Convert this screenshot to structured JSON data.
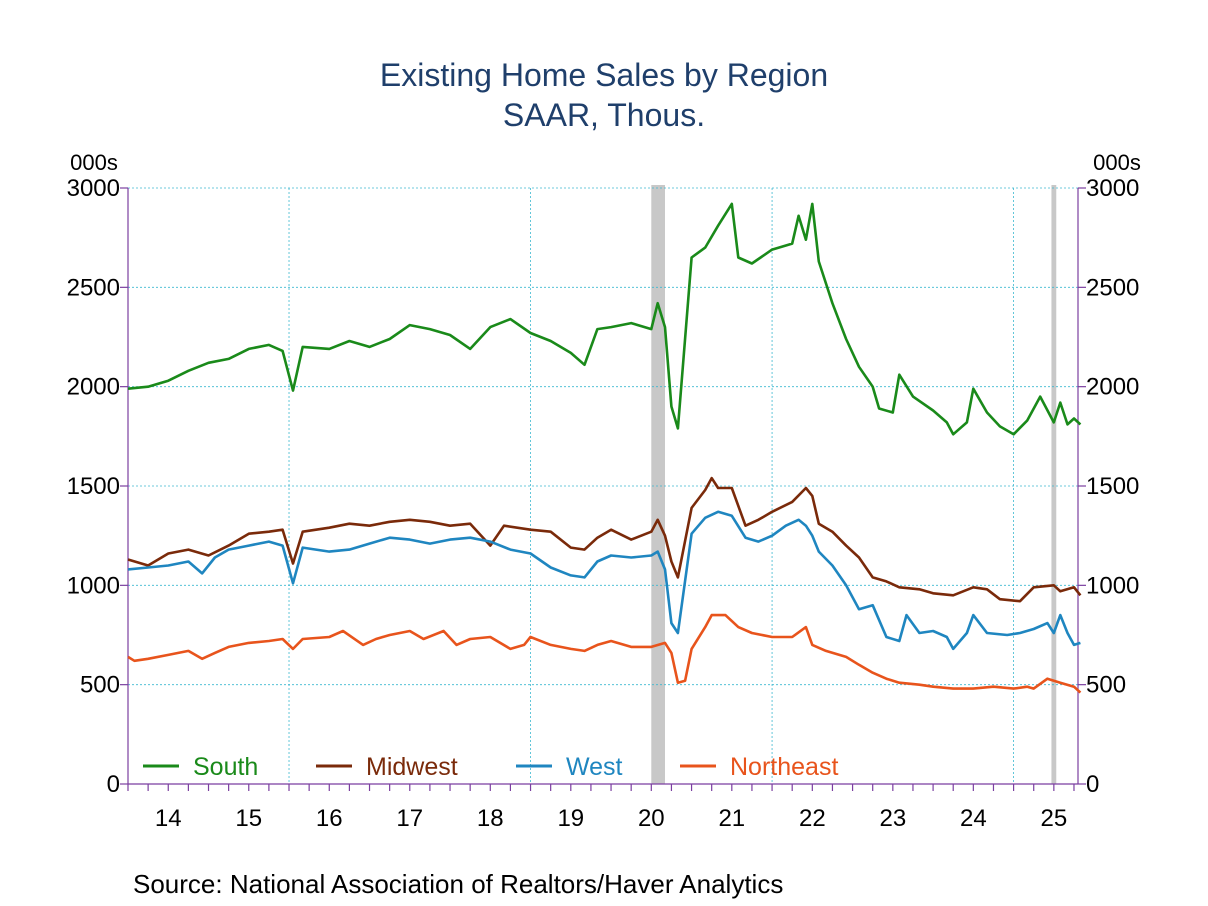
{
  "chart_data": {
    "type": "line",
    "title": "Existing Home Sales by Region",
    "subtitle": "SAAR, Thous.",
    "ylabel_left": "000s",
    "ylabel_right": "000s",
    "ylim": [
      0,
      3000
    ],
    "yticks": [
      "0",
      "500",
      "1000",
      "1500",
      "2000",
      "2500",
      "3000"
    ],
    "xlim": [
      2013.5,
      2025.3
    ],
    "xticks": [
      "14",
      "15",
      "16",
      "17",
      "18",
      "19",
      "20",
      "21",
      "22",
      "23",
      "24",
      "25"
    ],
    "grid": true,
    "legend_position": "bottom",
    "recession_shading": [
      [
        2020.0,
        2020.17
      ],
      [
        2024.97,
        2025.03
      ]
    ],
    "source": "Source:  National Association of Realtors/Haver Analytics",
    "series": [
      {
        "name": "South",
        "color": "#1a8a1a",
        "points": [
          [
            2013.5,
            1990
          ],
          [
            2013.75,
            2000
          ],
          [
            2014.0,
            2030
          ],
          [
            2014.25,
            2080
          ],
          [
            2014.5,
            2120
          ],
          [
            2014.75,
            2140
          ],
          [
            2015.0,
            2190
          ],
          [
            2015.25,
            2210
          ],
          [
            2015.42,
            2180
          ],
          [
            2015.55,
            1980
          ],
          [
            2015.67,
            2200
          ],
          [
            2016.0,
            2190
          ],
          [
            2016.25,
            2230
          ],
          [
            2016.5,
            2200
          ],
          [
            2016.75,
            2240
          ],
          [
            2017.0,
            2310
          ],
          [
            2017.25,
            2290
          ],
          [
            2017.5,
            2260
          ],
          [
            2017.75,
            2190
          ],
          [
            2018.0,
            2300
          ],
          [
            2018.25,
            2340
          ],
          [
            2018.5,
            2270
          ],
          [
            2018.75,
            2230
          ],
          [
            2019.0,
            2170
          ],
          [
            2019.17,
            2110
          ],
          [
            2019.33,
            2290
          ],
          [
            2019.5,
            2300
          ],
          [
            2019.75,
            2320
          ],
          [
            2020.0,
            2290
          ],
          [
            2020.08,
            2420
          ],
          [
            2020.17,
            2300
          ],
          [
            2020.25,
            1900
          ],
          [
            2020.33,
            1790
          ],
          [
            2020.5,
            2650
          ],
          [
            2020.67,
            2700
          ],
          [
            2020.83,
            2810
          ],
          [
            2021.0,
            2920
          ],
          [
            2021.08,
            2650
          ],
          [
            2021.25,
            2620
          ],
          [
            2021.5,
            2690
          ],
          [
            2021.75,
            2720
          ],
          [
            2021.83,
            2860
          ],
          [
            2021.92,
            2740
          ],
          [
            2022.0,
            2920
          ],
          [
            2022.08,
            2630
          ],
          [
            2022.25,
            2420
          ],
          [
            2022.42,
            2240
          ],
          [
            2022.58,
            2100
          ],
          [
            2022.75,
            2000
          ],
          [
            2022.83,
            1890
          ],
          [
            2023.0,
            1870
          ],
          [
            2023.08,
            2060
          ],
          [
            2023.25,
            1950
          ],
          [
            2023.5,
            1880
          ],
          [
            2023.67,
            1820
          ],
          [
            2023.75,
            1760
          ],
          [
            2023.92,
            1820
          ],
          [
            2024.0,
            1990
          ],
          [
            2024.17,
            1870
          ],
          [
            2024.33,
            1800
          ],
          [
            2024.5,
            1760
          ],
          [
            2024.67,
            1830
          ],
          [
            2024.83,
            1950
          ],
          [
            2025.0,
            1820
          ],
          [
            2025.08,
            1920
          ],
          [
            2025.17,
            1810
          ],
          [
            2025.25,
            1840
          ],
          [
            2025.33,
            1810
          ]
        ]
      },
      {
        "name": "Midwest",
        "color": "#7a2a0a",
        "points": [
          [
            2013.5,
            1130
          ],
          [
            2013.75,
            1100
          ],
          [
            2014.0,
            1160
          ],
          [
            2014.25,
            1180
          ],
          [
            2014.5,
            1150
          ],
          [
            2014.75,
            1200
          ],
          [
            2015.0,
            1260
          ],
          [
            2015.25,
            1270
          ],
          [
            2015.42,
            1280
          ],
          [
            2015.55,
            1110
          ],
          [
            2015.67,
            1270
          ],
          [
            2016.0,
            1290
          ],
          [
            2016.25,
            1310
          ],
          [
            2016.5,
            1300
          ],
          [
            2016.75,
            1320
          ],
          [
            2017.0,
            1330
          ],
          [
            2017.25,
            1320
          ],
          [
            2017.5,
            1300
          ],
          [
            2017.75,
            1310
          ],
          [
            2018.0,
            1200
          ],
          [
            2018.17,
            1300
          ],
          [
            2018.5,
            1280
          ],
          [
            2018.75,
            1270
          ],
          [
            2019.0,
            1190
          ],
          [
            2019.17,
            1180
          ],
          [
            2019.33,
            1240
          ],
          [
            2019.5,
            1280
          ],
          [
            2019.75,
            1230
          ],
          [
            2020.0,
            1270
          ],
          [
            2020.08,
            1330
          ],
          [
            2020.17,
            1250
          ],
          [
            2020.25,
            1120
          ],
          [
            2020.33,
            1040
          ],
          [
            2020.5,
            1390
          ],
          [
            2020.67,
            1480
          ],
          [
            2020.75,
            1540
          ],
          [
            2020.83,
            1490
          ],
          [
            2021.0,
            1490
          ],
          [
            2021.17,
            1300
          ],
          [
            2021.33,
            1330
          ],
          [
            2021.5,
            1370
          ],
          [
            2021.75,
            1420
          ],
          [
            2021.92,
            1490
          ],
          [
            2022.0,
            1450
          ],
          [
            2022.08,
            1310
          ],
          [
            2022.25,
            1270
          ],
          [
            2022.42,
            1200
          ],
          [
            2022.58,
            1140
          ],
          [
            2022.75,
            1040
          ],
          [
            2022.92,
            1020
          ],
          [
            2023.08,
            990
          ],
          [
            2023.33,
            980
          ],
          [
            2023.5,
            960
          ],
          [
            2023.75,
            950
          ],
          [
            2024.0,
            990
          ],
          [
            2024.17,
            980
          ],
          [
            2024.33,
            930
          ],
          [
            2024.58,
            920
          ],
          [
            2024.75,
            990
          ],
          [
            2025.0,
            1000
          ],
          [
            2025.08,
            970
          ],
          [
            2025.25,
            990
          ],
          [
            2025.33,
            950
          ]
        ]
      },
      {
        "name": "West",
        "color": "#1f86c0",
        "points": [
          [
            2013.5,
            1080
          ],
          [
            2013.75,
            1090
          ],
          [
            2014.0,
            1100
          ],
          [
            2014.25,
            1120
          ],
          [
            2014.42,
            1060
          ],
          [
            2014.58,
            1140
          ],
          [
            2014.75,
            1180
          ],
          [
            2015.0,
            1200
          ],
          [
            2015.25,
            1220
          ],
          [
            2015.42,
            1200
          ],
          [
            2015.55,
            1010
          ],
          [
            2015.67,
            1190
          ],
          [
            2016.0,
            1170
          ],
          [
            2016.25,
            1180
          ],
          [
            2016.5,
            1210
          ],
          [
            2016.75,
            1240
          ],
          [
            2017.0,
            1230
          ],
          [
            2017.25,
            1210
          ],
          [
            2017.5,
            1230
          ],
          [
            2017.75,
            1240
          ],
          [
            2018.0,
            1220
          ],
          [
            2018.25,
            1180
          ],
          [
            2018.5,
            1160
          ],
          [
            2018.75,
            1090
          ],
          [
            2019.0,
            1050
          ],
          [
            2019.17,
            1040
          ],
          [
            2019.33,
            1120
          ],
          [
            2019.5,
            1150
          ],
          [
            2019.75,
            1140
          ],
          [
            2020.0,
            1150
          ],
          [
            2020.08,
            1170
          ],
          [
            2020.17,
            1080
          ],
          [
            2020.25,
            810
          ],
          [
            2020.33,
            760
          ],
          [
            2020.5,
            1260
          ],
          [
            2020.67,
            1340
          ],
          [
            2020.83,
            1370
          ],
          [
            2021.0,
            1350
          ],
          [
            2021.17,
            1240
          ],
          [
            2021.33,
            1220
          ],
          [
            2021.5,
            1250
          ],
          [
            2021.67,
            1300
          ],
          [
            2021.83,
            1330
          ],
          [
            2021.92,
            1300
          ],
          [
            2022.0,
            1250
          ],
          [
            2022.08,
            1170
          ],
          [
            2022.25,
            1100
          ],
          [
            2022.42,
            1000
          ],
          [
            2022.58,
            880
          ],
          [
            2022.75,
            900
          ],
          [
            2022.92,
            740
          ],
          [
            2023.08,
            720
          ],
          [
            2023.17,
            850
          ],
          [
            2023.33,
            760
          ],
          [
            2023.5,
            770
          ],
          [
            2023.67,
            740
          ],
          [
            2023.75,
            680
          ],
          [
            2023.92,
            760
          ],
          [
            2024.0,
            850
          ],
          [
            2024.17,
            760
          ],
          [
            2024.42,
            750
          ],
          [
            2024.58,
            760
          ],
          [
            2024.75,
            780
          ],
          [
            2024.92,
            810
          ],
          [
            2025.0,
            760
          ],
          [
            2025.08,
            850
          ],
          [
            2025.17,
            760
          ],
          [
            2025.25,
            700
          ],
          [
            2025.33,
            710
          ]
        ]
      },
      {
        "name": "Northeast",
        "color": "#e8541c",
        "points": [
          [
            2013.5,
            640
          ],
          [
            2013.58,
            620
          ],
          [
            2013.75,
            630
          ],
          [
            2014.0,
            650
          ],
          [
            2014.25,
            670
          ],
          [
            2014.42,
            630
          ],
          [
            2014.58,
            660
          ],
          [
            2014.75,
            690
          ],
          [
            2015.0,
            710
          ],
          [
            2015.25,
            720
          ],
          [
            2015.42,
            730
          ],
          [
            2015.55,
            680
          ],
          [
            2015.67,
            730
          ],
          [
            2016.0,
            740
          ],
          [
            2016.17,
            770
          ],
          [
            2016.42,
            700
          ],
          [
            2016.58,
            730
          ],
          [
            2016.75,
            750
          ],
          [
            2017.0,
            770
          ],
          [
            2017.17,
            730
          ],
          [
            2017.42,
            770
          ],
          [
            2017.58,
            700
          ],
          [
            2017.75,
            730
          ],
          [
            2018.0,
            740
          ],
          [
            2018.25,
            680
          ],
          [
            2018.42,
            700
          ],
          [
            2018.5,
            740
          ],
          [
            2018.75,
            700
          ],
          [
            2019.0,
            680
          ],
          [
            2019.17,
            670
          ],
          [
            2019.33,
            700
          ],
          [
            2019.5,
            720
          ],
          [
            2019.75,
            690
          ],
          [
            2020.0,
            690
          ],
          [
            2020.17,
            710
          ],
          [
            2020.25,
            660
          ],
          [
            2020.33,
            510
          ],
          [
            2020.42,
            520
          ],
          [
            2020.5,
            680
          ],
          [
            2020.67,
            790
          ],
          [
            2020.75,
            850
          ],
          [
            2020.92,
            850
          ],
          [
            2021.08,
            790
          ],
          [
            2021.25,
            760
          ],
          [
            2021.5,
            740
          ],
          [
            2021.75,
            740
          ],
          [
            2021.92,
            790
          ],
          [
            2022.0,
            700
          ],
          [
            2022.17,
            670
          ],
          [
            2022.42,
            640
          ],
          [
            2022.58,
            600
          ],
          [
            2022.75,
            560
          ],
          [
            2022.92,
            530
          ],
          [
            2023.08,
            510
          ],
          [
            2023.33,
            500
          ],
          [
            2023.5,
            490
          ],
          [
            2023.75,
            480
          ],
          [
            2024.0,
            480
          ],
          [
            2024.25,
            490
          ],
          [
            2024.5,
            480
          ],
          [
            2024.67,
            490
          ],
          [
            2024.75,
            480
          ],
          [
            2024.92,
            530
          ],
          [
            2025.08,
            510
          ],
          [
            2025.25,
            490
          ],
          [
            2025.33,
            460
          ]
        ]
      }
    ]
  }
}
